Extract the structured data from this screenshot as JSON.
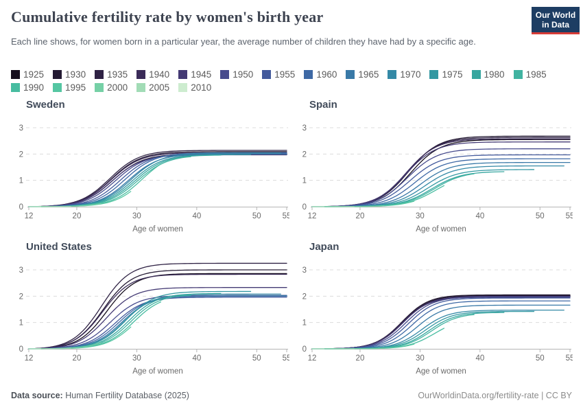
{
  "header": {
    "title": "Cumulative fertility rate by women's birth year",
    "subtitle": "Each line shows, for women born in a particular year, the average number of children they have had by a specific age.",
    "logo": {
      "line1": "Our World",
      "line2": "in Data",
      "bg_color": "#1d3d63",
      "accent_color": "#d73c37"
    }
  },
  "legend": {
    "rows": [
      [
        "1925",
        "1930",
        "1935",
        "1940",
        "1945",
        "1950",
        "1955",
        "1960",
        "1965",
        "1970",
        "1975",
        "1980",
        "1985"
      ],
      [
        "1990",
        "1995",
        "2000",
        "2005",
        "2010"
      ]
    ],
    "colors": {
      "1925": "#170f1e",
      "1930": "#241a33",
      "1935": "#2f2244",
      "1940": "#3a2b58",
      "1945": "#443a74",
      "1950": "#474b8d",
      "1955": "#435a9c",
      "1960": "#3e69a5",
      "1965": "#3979a7",
      "1970": "#3489a6",
      "1975": "#3398a2",
      "1980": "#36a69f",
      "1985": "#41b3a1",
      "1990": "#47bca0",
      "1995": "#55c6a2",
      "2000": "#76d0a6",
      "2005": "#a2dcb6",
      "2010": "#cdeccf"
    }
  },
  "chart_data": [
    {
      "type": "line",
      "title": "Sweden",
      "xlabel": "Age of women",
      "x_ticks": [
        12,
        20,
        30,
        40,
        50,
        55
      ],
      "y_ticks": [
        0,
        1,
        2,
        3
      ],
      "x_range": [
        12,
        55
      ],
      "y_range": [
        0,
        3
      ],
      "grid": "dashed-horizontal",
      "steepness": 0.4,
      "series": [
        {
          "birth_year": 1925,
          "midpoint_age": 26.0,
          "last_age": 55,
          "value_at_last_age": 2.0
        },
        {
          "birth_year": 1930,
          "midpoint_age": 25.7,
          "last_age": 55,
          "value_at_last_age": 2.09
        },
        {
          "birth_year": 1935,
          "midpoint_age": 25.5,
          "last_age": 55,
          "value_at_last_age": 2.14
        },
        {
          "birth_year": 1940,
          "midpoint_age": 25.7,
          "last_age": 55,
          "value_at_last_age": 2.05
        },
        {
          "birth_year": 1945,
          "midpoint_age": 25.9,
          "last_age": 55,
          "value_at_last_age": 1.97
        },
        {
          "birth_year": 1950,
          "midpoint_age": 26.5,
          "last_age": 55,
          "value_at_last_age": 2.0
        },
        {
          "birth_year": 1955,
          "midpoint_age": 27.3,
          "last_age": 55,
          "value_at_last_age": 2.03
        },
        {
          "birth_year": 1960,
          "midpoint_age": 28.0,
          "last_age": 55,
          "value_at_last_age": 2.05
        },
        {
          "birth_year": 1965,
          "midpoint_age": 28.6,
          "last_age": 55,
          "value_at_last_age": 2.0
        },
        {
          "birth_year": 1970,
          "midpoint_age": 29.0,
          "last_age": 54,
          "value_at_last_age": 2.04
        },
        {
          "birth_year": 1975,
          "midpoint_age": 29.3,
          "last_age": 49,
          "value_at_last_age": 1.98
        },
        {
          "birth_year": 1980,
          "midpoint_age": 29.7,
          "last_age": 44,
          "value_at_last_age": 1.96
        },
        {
          "birth_year": 1985,
          "midpoint_age": 30.1,
          "last_age": 39,
          "value_at_last_age": 1.9
        },
        {
          "birth_year": 1990,
          "midpoint_age": 30.9,
          "last_age": 34,
          "value_at_last_age": 1.62
        },
        {
          "birth_year": 1995,
          "midpoint_age": 31.5,
          "last_age": 29,
          "value_at_last_age": 0.58
        },
        {
          "birth_year": 2000,
          "midpoint_age": 31.8,
          "last_age": 24,
          "value_at_last_age": 0.12
        },
        {
          "birth_year": 2005,
          "midpoint_age": 32.0,
          "last_age": 19,
          "value_at_last_age": 0.01
        },
        {
          "birth_year": 2010,
          "midpoint_age": 32.0,
          "last_age": 14,
          "value_at_last_age": 0.0
        }
      ]
    },
    {
      "type": "line",
      "title": "Spain",
      "xlabel": "Age of women",
      "x_ticks": [
        12,
        20,
        30,
        40,
        50,
        55
      ],
      "y_ticks": [
        0,
        1,
        2,
        3
      ],
      "x_range": [
        12,
        55
      ],
      "y_range": [
        0,
        3
      ],
      "grid": "dashed-horizontal",
      "steepness": 0.4,
      "series": [
        {
          "birth_year": 1925,
          "midpoint_age": 28.4,
          "last_age": 55,
          "value_at_last_age": 2.55
        },
        {
          "birth_year": 1930,
          "midpoint_age": 28.1,
          "last_age": 55,
          "value_at_last_age": 2.68
        },
        {
          "birth_year": 1935,
          "midpoint_age": 27.9,
          "last_age": 55,
          "value_at_last_age": 2.63
        },
        {
          "birth_year": 1940,
          "midpoint_age": 27.7,
          "last_age": 55,
          "value_at_last_age": 2.58
        },
        {
          "birth_year": 1945,
          "midpoint_age": 27.6,
          "last_age": 55,
          "value_at_last_age": 2.46
        },
        {
          "birth_year": 1950,
          "midpoint_age": 27.9,
          "last_age": 55,
          "value_at_last_age": 2.2
        },
        {
          "birth_year": 1955,
          "midpoint_age": 28.3,
          "last_age": 55,
          "value_at_last_age": 1.97
        },
        {
          "birth_year": 1960,
          "midpoint_age": 29.1,
          "last_age": 55,
          "value_at_last_age": 1.82
        },
        {
          "birth_year": 1965,
          "midpoint_age": 30.0,
          "last_age": 55,
          "value_at_last_age": 1.68
        },
        {
          "birth_year": 1970,
          "midpoint_age": 30.7,
          "last_age": 54,
          "value_at_last_age": 1.55
        },
        {
          "birth_year": 1975,
          "midpoint_age": 31.3,
          "last_age": 49,
          "value_at_last_age": 1.41
        },
        {
          "birth_year": 1980,
          "midpoint_age": 31.9,
          "last_age": 44,
          "value_at_last_age": 1.33
        },
        {
          "birth_year": 1985,
          "midpoint_age": 32.3,
          "last_age": 39,
          "value_at_last_age": 1.25
        },
        {
          "birth_year": 1990,
          "midpoint_age": 32.7,
          "last_age": 34,
          "value_at_last_age": 0.8
        },
        {
          "birth_year": 1995,
          "midpoint_age": 33.0,
          "last_age": 29,
          "value_at_last_age": 0.21
        },
        {
          "birth_year": 2000,
          "midpoint_age": 33.0,
          "last_age": 24,
          "value_at_last_age": 0.03
        },
        {
          "birth_year": 2005,
          "midpoint_age": 33.0,
          "last_age": 19,
          "value_at_last_age": 0.0
        },
        {
          "birth_year": 2010,
          "midpoint_age": 33.0,
          "last_age": 14,
          "value_at_last_age": 0.0
        }
      ]
    },
    {
      "type": "line",
      "title": "United States",
      "xlabel": "Age of women",
      "x_ticks": [
        12,
        20,
        30,
        40,
        50,
        55
      ],
      "y_ticks": [
        0,
        1,
        2,
        3
      ],
      "x_range": [
        12,
        55
      ],
      "y_range": [
        0,
        3.4
      ],
      "grid": "dashed-horizontal",
      "steepness": 0.42,
      "series": [
        {
          "birth_year": 1925,
          "midpoint_age": 25.0,
          "last_age": 55,
          "value_at_last_age": 2.86
        },
        {
          "birth_year": 1930,
          "midpoint_age": 24.4,
          "last_age": 55,
          "value_at_last_age": 3.0
        },
        {
          "birth_year": 1935,
          "midpoint_age": 24.1,
          "last_age": 55,
          "value_at_last_age": 3.25
        },
        {
          "birth_year": 1940,
          "midpoint_age": 24.3,
          "last_age": 55,
          "value_at_last_age": 2.83
        },
        {
          "birth_year": 1945,
          "midpoint_age": 24.9,
          "last_age": 55,
          "value_at_last_age": 2.33
        },
        {
          "birth_year": 1950,
          "midpoint_age": 25.6,
          "last_age": 55,
          "value_at_last_age": 2.03
        },
        {
          "birth_year": 1955,
          "midpoint_age": 26.4,
          "last_age": 55,
          "value_at_last_age": 1.96
        },
        {
          "birth_year": 1960,
          "midpoint_age": 27.0,
          "last_age": 55,
          "value_at_last_age": 2.0
        },
        {
          "birth_year": 1965,
          "midpoint_age": 27.5,
          "last_age": 55,
          "value_at_last_age": 2.02
        },
        {
          "birth_year": 1970,
          "midpoint_age": 27.9,
          "last_age": 54,
          "value_at_last_age": 2.08
        },
        {
          "birth_year": 1975,
          "midpoint_age": 28.2,
          "last_age": 49,
          "value_at_last_age": 2.18
        },
        {
          "birth_year": 1980,
          "midpoint_age": 28.6,
          "last_age": 44,
          "value_at_last_age": 2.1
        },
        {
          "birth_year": 1985,
          "midpoint_age": 29.0,
          "last_age": 39,
          "value_at_last_age": 2.04
        },
        {
          "birth_year": 1990,
          "midpoint_age": 29.5,
          "last_age": 34,
          "value_at_last_age": 1.78
        },
        {
          "birth_year": 1995,
          "midpoint_age": 29.8,
          "last_age": 29,
          "value_at_last_age": 0.83
        },
        {
          "birth_year": 2000,
          "midpoint_age": 29.5,
          "last_age": 24,
          "value_at_last_age": 0.24
        },
        {
          "birth_year": 2005,
          "midpoint_age": 29.5,
          "last_age": 19,
          "value_at_last_age": 0.03
        },
        {
          "birth_year": 2010,
          "midpoint_age": 29.5,
          "last_age": 14,
          "value_at_last_age": 0.0
        }
      ]
    },
    {
      "type": "line",
      "title": "Japan",
      "xlabel": "Age of women",
      "x_ticks": [
        12,
        20,
        30,
        40,
        50,
        55
      ],
      "y_ticks": [
        0,
        1,
        2,
        3
      ],
      "x_range": [
        12,
        55
      ],
      "y_range": [
        0,
        3
      ],
      "grid": "dashed-horizontal",
      "steepness": 0.45,
      "series": [
        {
          "birth_year": 1925,
          "midpoint_age": 27.1,
          "last_age": 55,
          "value_at_last_age": 2.02
        },
        {
          "birth_year": 1930,
          "midpoint_age": 27.0,
          "last_age": 55,
          "value_at_last_age": 2.05
        },
        {
          "birth_year": 1935,
          "midpoint_age": 27.0,
          "last_age": 55,
          "value_at_last_age": 1.99
        },
        {
          "birth_year": 1940,
          "midpoint_age": 27.0,
          "last_age": 55,
          "value_at_last_age": 1.96
        },
        {
          "birth_year": 1945,
          "midpoint_age": 27.2,
          "last_age": 55,
          "value_at_last_age": 2.0
        },
        {
          "birth_year": 1950,
          "midpoint_age": 27.6,
          "last_age": 55,
          "value_at_last_age": 1.97
        },
        {
          "birth_year": 1955,
          "midpoint_age": 28.1,
          "last_age": 55,
          "value_at_last_age": 1.93
        },
        {
          "birth_year": 1960,
          "midpoint_age": 28.7,
          "last_age": 55,
          "value_at_last_age": 1.82
        },
        {
          "birth_year": 1965,
          "midpoint_age": 29.5,
          "last_age": 55,
          "value_at_last_age": 1.66
        },
        {
          "birth_year": 1970,
          "midpoint_age": 30.3,
          "last_age": 54,
          "value_at_last_age": 1.47
        },
        {
          "birth_year": 1975,
          "midpoint_age": 30.9,
          "last_age": 49,
          "value_at_last_age": 1.42
        },
        {
          "birth_year": 1980,
          "midpoint_age": 31.5,
          "last_age": 44,
          "value_at_last_age": 1.38
        },
        {
          "birth_year": 1985,
          "midpoint_age": 31.9,
          "last_age": 39,
          "value_at_last_age": 1.3
        },
        {
          "birth_year": 1990,
          "midpoint_age": 32.4,
          "last_age": 34,
          "value_at_last_age": 0.78
        },
        {
          "birth_year": 1995,
          "midpoint_age": 32.6,
          "last_age": 29,
          "value_at_last_age": 0.18
        },
        {
          "birth_year": 2000,
          "midpoint_age": 32.6,
          "last_age": 24,
          "value_at_last_age": 0.02
        },
        {
          "birth_year": 2005,
          "midpoint_age": 32.6,
          "last_age": 19,
          "value_at_last_age": 0.0
        },
        {
          "birth_year": 2010,
          "midpoint_age": 32.6,
          "last_age": 14,
          "value_at_last_age": 0.0
        }
      ]
    }
  ],
  "footer": {
    "datasource_label": "Data source:",
    "datasource_value": "Human Fertility Database (2025)",
    "right_text": "OurWorldinData.org/fertility-rate | CC BY"
  },
  "style_colors": {
    "grid": "#dcdcdc",
    "axis": "#b5b5b5",
    "tick_text": "#696969",
    "title": "#3d4350",
    "subtitle": "#5c636d",
    "panel_title": "#414b5a"
  }
}
